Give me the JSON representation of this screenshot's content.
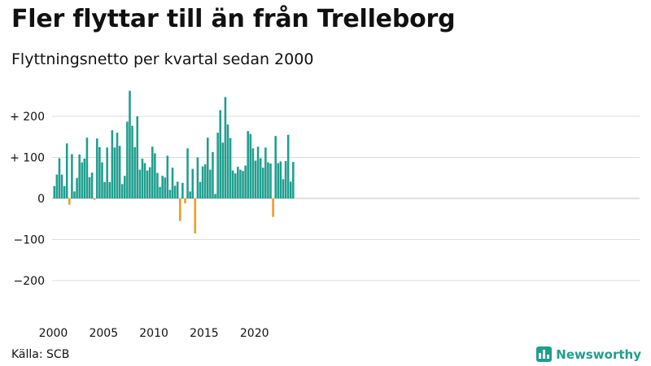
{
  "title": "Fler flyttar till än från Trelleborg",
  "subtitle": "Flyttningsnetto per kvartal sedan 2000",
  "source": "Källa: SCB",
  "brand": {
    "name": "Newsworthy",
    "icon": "newsworthy-logo-icon",
    "color": "#1f9e8e"
  },
  "colors": {
    "positive": "#1f9e8e",
    "negative": "#f39a1b",
    "grid": "#dcdcdc"
  },
  "chart_data": {
    "type": "bar",
    "title": "Flyttningsnetto per kvartal sedan 2000",
    "xlabel": "",
    "ylabel": "",
    "x_start": "2000-Q1",
    "x_ticks": [
      "2000",
      "2005",
      "2010",
      "2015",
      "2020"
    ],
    "y_ticks": [
      {
        "value": 200,
        "label": "+ 200"
      },
      {
        "value": 100,
        "label": "+ 100"
      },
      {
        "value": 0,
        "label": "0"
      },
      {
        "value": -100,
        "label": "−100"
      },
      {
        "value": -200,
        "label": "−200"
      }
    ],
    "ylim": [
      -240,
      270
    ],
    "grid": true,
    "legend": "none",
    "values": [
      30,
      58,
      98,
      58,
      30,
      134,
      -15,
      108,
      17,
      50,
      107,
      88,
      97,
      148,
      52,
      63,
      -3,
      146,
      125,
      88,
      40,
      124,
      40,
      166,
      124,
      160,
      128,
      35,
      55,
      187,
      262,
      177,
      125,
      200,
      70,
      97,
      86,
      68,
      76,
      126,
      110,
      62,
      28,
      55,
      51,
      104,
      21,
      75,
      31,
      41,
      -55,
      38,
      -12,
      122,
      17,
      72,
      -85,
      100,
      40,
      78,
      83,
      148,
      70,
      113,
      11,
      160,
      215,
      136,
      247,
      180,
      147,
      68,
      61,
      77,
      70,
      67,
      80,
      164,
      157,
      122,
      92,
      126,
      98,
      75,
      124,
      88,
      85,
      -45,
      152,
      86,
      90,
      47,
      91,
      155,
      41,
      89
    ]
  }
}
